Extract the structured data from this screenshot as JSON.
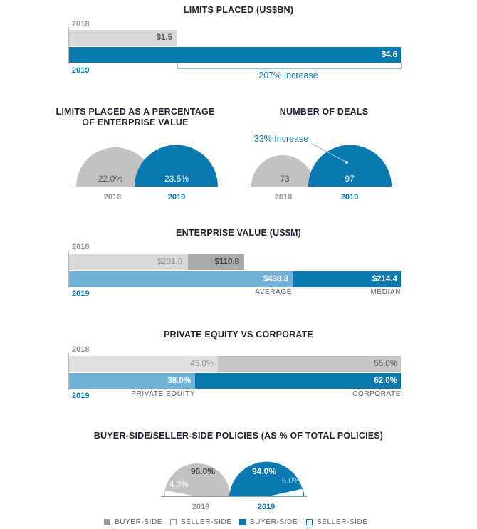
{
  "colors": {
    "gray_dark": "#aaaaaa",
    "gray_light": "#d9d9d9",
    "blue": "#0a79b0",
    "blue_light": "#71b2d8",
    "text_dark": "#1c2430"
  },
  "limits": {
    "title": "LIMITS PLACED (US$BN)",
    "year_a": "2018",
    "year_b": "2019",
    "value_a": "$1.5",
    "value_b": "$4.6",
    "annotation": "207% Increase"
  },
  "pct_ev": {
    "title_1": "LIMITS PLACED AS A PERCENTAGE",
    "title_2": "OF ENTERPRISE VALUE",
    "value_a": "22.0%",
    "value_b": "23.5%",
    "year_a": "2018",
    "year_b": "2019"
  },
  "deals": {
    "title": "NUMBER OF DEALS",
    "annotation": "33% Increase",
    "value_a": "73",
    "value_b": "97",
    "year_a": "2018",
    "year_b": "2019"
  },
  "ev": {
    "title": "ENTERPRISE VALUE (US$M)",
    "year_a": "2018",
    "year_b": "2019",
    "avg_a": "$231.6",
    "med_a": "$110.8",
    "avg_b": "$438.3",
    "med_b": "$214.4",
    "label_avg": "AVERAGE",
    "label_med": "MEDIAN"
  },
  "pe": {
    "title": "PRIVATE EQUITY VS CORPORATE",
    "year_a": "2018",
    "year_b": "2019",
    "pe_a": "45.0%",
    "corp_a": "55.0%",
    "pe_b": "38.0%",
    "corp_b": "62.0%",
    "label_pe": "PRIVATE EQUITY",
    "label_corp": "CORPORATE"
  },
  "policies": {
    "title": "BUYER-SIDE/SELLER-SIDE POLICIES (AS % OF TOTAL POLICIES)",
    "buyer_a": "96.0%",
    "seller_a": "4.0%",
    "buyer_b": "94.0%",
    "seller_b": "6.0%",
    "year_a": "2018",
    "year_b": "2019"
  },
  "legend": {
    "buyer_2018": "BUYER-SIDE",
    "seller_2018": "SELLER-SIDE",
    "buyer_2019": "BUYER-SIDE",
    "seller_2019": "SELLER-SIDE"
  },
  "chart_data": [
    {
      "type": "bar",
      "title": "LIMITS PLACED (US$BN)",
      "categories": [
        "2018",
        "2019"
      ],
      "values": [
        1.5,
        4.6
      ],
      "annotations": [
        "207% Increase"
      ]
    },
    {
      "type": "pie",
      "title": "LIMITS PLACED AS A PERCENTAGE OF ENTERPRISE VALUE",
      "categories": [
        "2018",
        "2019"
      ],
      "values": [
        22.0,
        23.5
      ]
    },
    {
      "type": "pie",
      "title": "NUMBER OF DEALS",
      "categories": [
        "2018",
        "2019"
      ],
      "values": [
        73,
        97
      ],
      "annotations": [
        "33% Increase"
      ]
    },
    {
      "type": "bar",
      "title": "ENTERPRISE VALUE (US$M)",
      "categories": [
        "2018",
        "2019"
      ],
      "series": [
        {
          "name": "AVERAGE",
          "values": [
            231.6,
            438.3
          ]
        },
        {
          "name": "MEDIAN",
          "values": [
            110.8,
            214.4
          ]
        }
      ]
    },
    {
      "type": "bar",
      "title": "PRIVATE EQUITY VS CORPORATE",
      "categories": [
        "2018",
        "2019"
      ],
      "series": [
        {
          "name": "PRIVATE EQUITY",
          "values": [
            45.0,
            38.0
          ]
        },
        {
          "name": "CORPORATE",
          "values": [
            55.0,
            62.0
          ]
        }
      ]
    },
    {
      "type": "pie",
      "title": "BUYER-SIDE/SELLER-SIDE POLICIES (AS % OF TOTAL POLICIES)",
      "categories": [
        "2018",
        "2019"
      ],
      "series": [
        {
          "name": "BUYER-SIDE",
          "values": [
            96.0,
            94.0
          ]
        },
        {
          "name": "SELLER-SIDE",
          "values": [
            4.0,
            6.0
          ]
        }
      ]
    }
  ]
}
